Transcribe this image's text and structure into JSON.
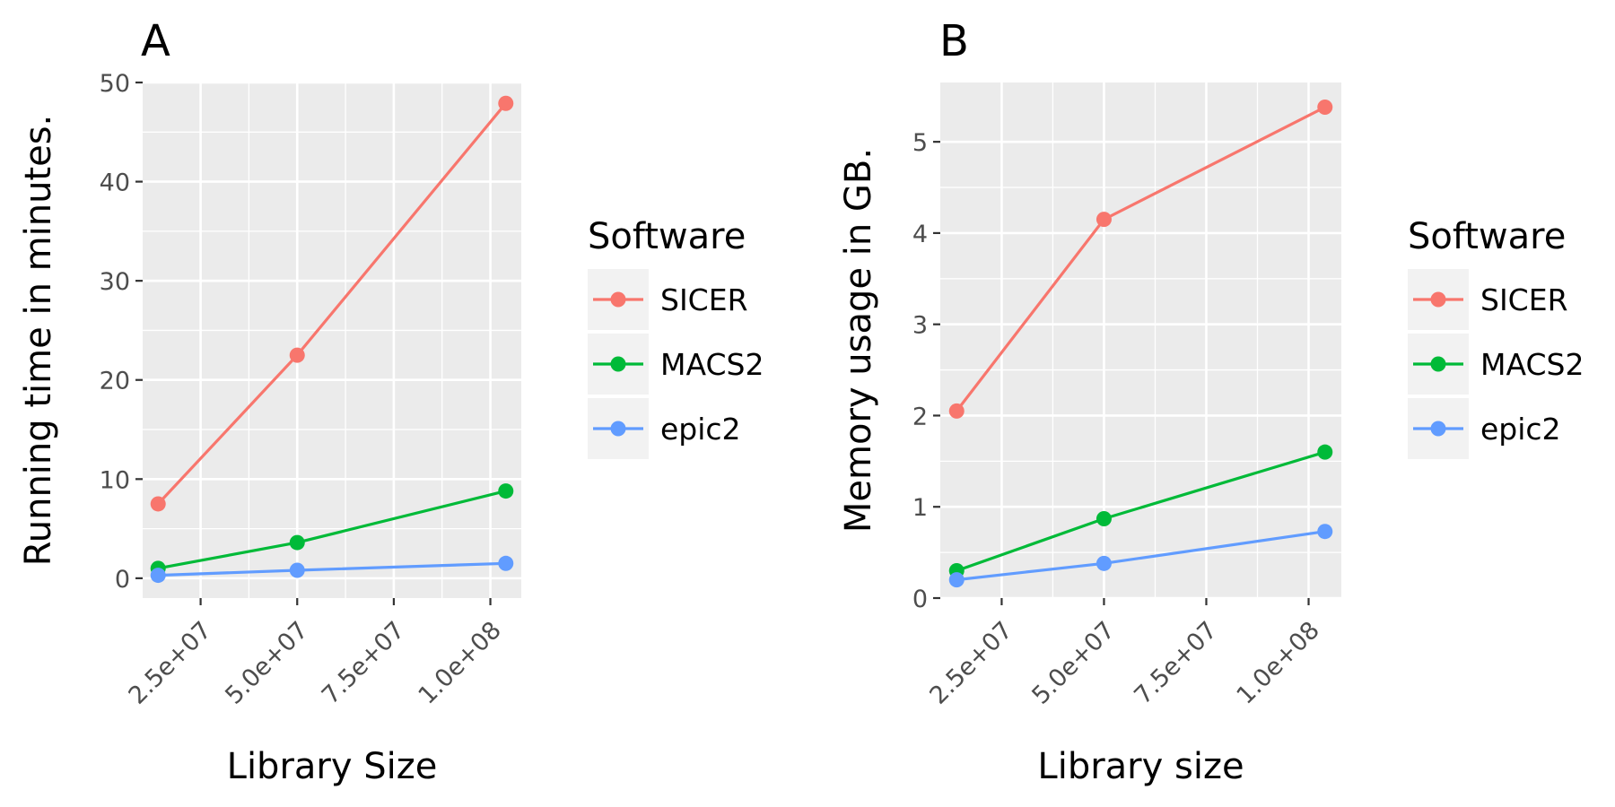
{
  "chart_data": [
    {
      "type": "line",
      "panel_label": "A",
      "xlabel": "Library Size",
      "ylabel": "Running time in minutes.",
      "xlim": [
        10000000,
        108000000
      ],
      "ylim": [
        -2,
        50
      ],
      "x_ticks": [
        25000000,
        50000000,
        75000000,
        100000000
      ],
      "x_tick_labels": [
        "2.5e+07",
        "5.0e+07",
        "7.5e+07",
        "1.0e+08"
      ],
      "y_ticks": [
        0,
        10,
        20,
        30,
        40,
        50
      ],
      "y_tick_labels": [
        "0",
        "10",
        "20",
        "30",
        "40",
        "50"
      ],
      "grid": true,
      "legend_title": "Software",
      "legend_position": "right",
      "x": [
        14000000,
        50000000,
        104000000
      ],
      "series": [
        {
          "name": "SICER",
          "color": "#F8766D",
          "values": [
            7.5,
            22.5,
            47.9
          ]
        },
        {
          "name": "MACS2",
          "color": "#00BA38",
          "values": [
            1.0,
            3.6,
            8.8
          ]
        },
        {
          "name": "epic2",
          "color": "#619CFF",
          "values": [
            0.3,
            0.8,
            1.5
          ]
        }
      ]
    },
    {
      "type": "line",
      "panel_label": "B",
      "xlabel": "Library size",
      "ylabel": "Memory usage in GB.",
      "xlim": [
        10000000,
        108000000
      ],
      "ylim": [
        0,
        5.65
      ],
      "x_ticks": [
        25000000,
        50000000,
        75000000,
        100000000
      ],
      "x_tick_labels": [
        "2.5e+07",
        "5.0e+07",
        "7.5e+07",
        "1.0e+08"
      ],
      "y_ticks": [
        0,
        1,
        2,
        3,
        4,
        5
      ],
      "y_tick_labels": [
        "0",
        "1",
        "2",
        "3",
        "4",
        "5"
      ],
      "grid": true,
      "legend_title": "Software",
      "legend_position": "right",
      "x": [
        14000000,
        50000000,
        104000000
      ],
      "series": [
        {
          "name": "SICER",
          "color": "#F8766D",
          "values": [
            2.05,
            4.15,
            5.38
          ]
        },
        {
          "name": "MACS2",
          "color": "#00BA38",
          "values": [
            0.3,
            0.87,
            1.6
          ]
        },
        {
          "name": "epic2",
          "color": "#619CFF",
          "values": [
            0.2,
            0.38,
            0.73
          ]
        }
      ]
    }
  ]
}
